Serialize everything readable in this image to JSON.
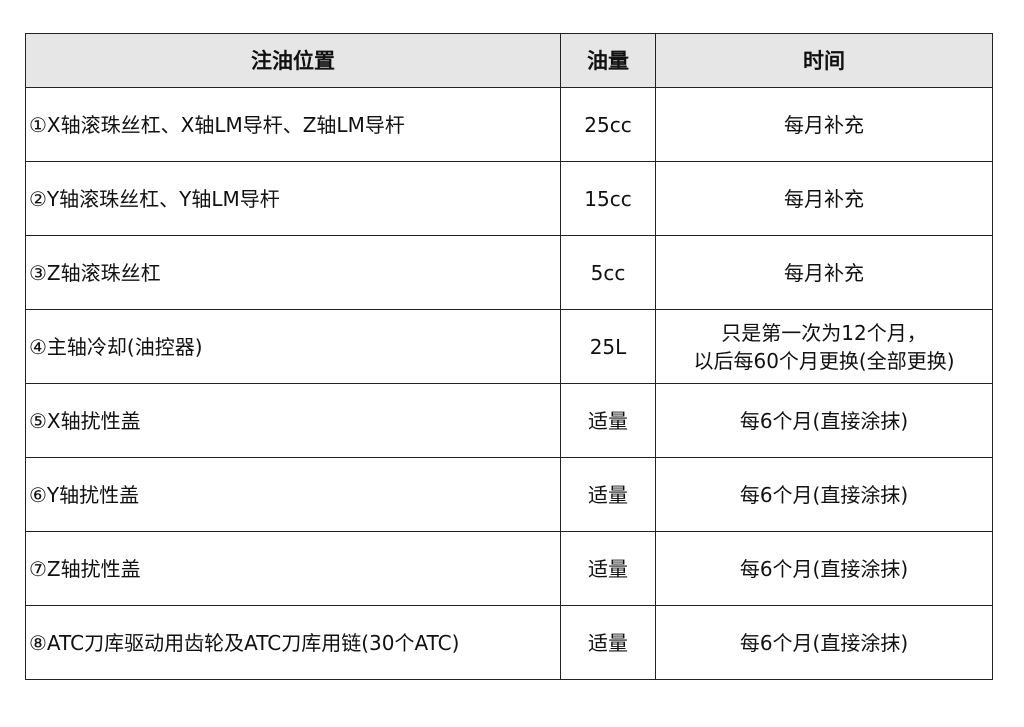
{
  "table": {
    "headers": [
      "注油位置",
      "油量",
      "时间"
    ],
    "rows": [
      {
        "position": "①X轴滚珠丝杠、X轴LM导杆、Z轴LM导杆",
        "amount": "25cc",
        "time": "每月补充",
        "time2": ""
      },
      {
        "position": "②Y轴滚珠丝杠、Y轴LM导杆",
        "amount": "15cc",
        "time": "每月补充",
        "time2": ""
      },
      {
        "position": "③Z轴滚珠丝杠",
        "amount": "5cc",
        "time": "每月补充",
        "time2": ""
      },
      {
        "position": "④主轴冷却(油控器)",
        "amount": "25L",
        "time": "只是第一次为12个月，",
        "time2": "以后每60个月更换(全部更换)"
      },
      {
        "position": "⑤X轴扰性盖",
        "amount": "适量",
        "time": "每6个月(直接涂抹)",
        "time2": ""
      },
      {
        "position": "⑥Y轴扰性盖",
        "amount": "适量",
        "time": "每6个月(直接涂抹)",
        "time2": ""
      },
      {
        "position": "⑦Z轴扰性盖",
        "amount": "适量",
        "time": "每6个月(直接涂抹)",
        "time2": ""
      },
      {
        "position": "⑧ATC刀库驱动用齿轮及ATC刀库用链(30个ATC)",
        "amount": "适量",
        "time": "每6个月(直接涂抹)",
        "time2": ""
      }
    ]
  }
}
